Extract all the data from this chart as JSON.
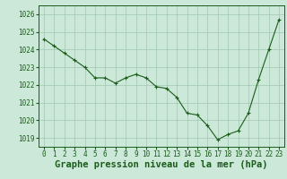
{
  "x": [
    0,
    1,
    2,
    3,
    4,
    5,
    6,
    7,
    8,
    9,
    10,
    11,
    12,
    13,
    14,
    15,
    16,
    17,
    18,
    19,
    20,
    21,
    22,
    23
  ],
  "y": [
    1024.6,
    1024.2,
    1023.8,
    1023.4,
    1023.0,
    1022.4,
    1022.4,
    1022.1,
    1022.4,
    1022.6,
    1022.4,
    1021.9,
    1021.8,
    1021.3,
    1020.4,
    1020.3,
    1019.7,
    1018.9,
    1019.2,
    1019.4,
    1020.4,
    1022.3,
    1024.0,
    1025.7
  ],
  "line_color": "#1a5c1a",
  "marker": "+",
  "marker_size": 3,
  "marker_lw": 0.8,
  "line_width": 0.8,
  "bg_color": "#cce8d8",
  "grid_color": "#a0c8b0",
  "xlabel": "Graphe pression niveau de la mer (hPa)",
  "xlabel_fontsize": 7.5,
  "xlabel_color": "#1a5c1a",
  "ylim": [
    1018.5,
    1026.5
  ],
  "yticks": [
    1019,
    1020,
    1021,
    1022,
    1023,
    1024,
    1025,
    1026
  ],
  "xticks": [
    0,
    1,
    2,
    3,
    4,
    5,
    6,
    7,
    8,
    9,
    10,
    11,
    12,
    13,
    14,
    15,
    16,
    17,
    18,
    19,
    20,
    21,
    22,
    23
  ],
  "tick_fontsize": 5.5,
  "tick_color": "#1a5c1a",
  "spine_color": "#1a5c1a"
}
